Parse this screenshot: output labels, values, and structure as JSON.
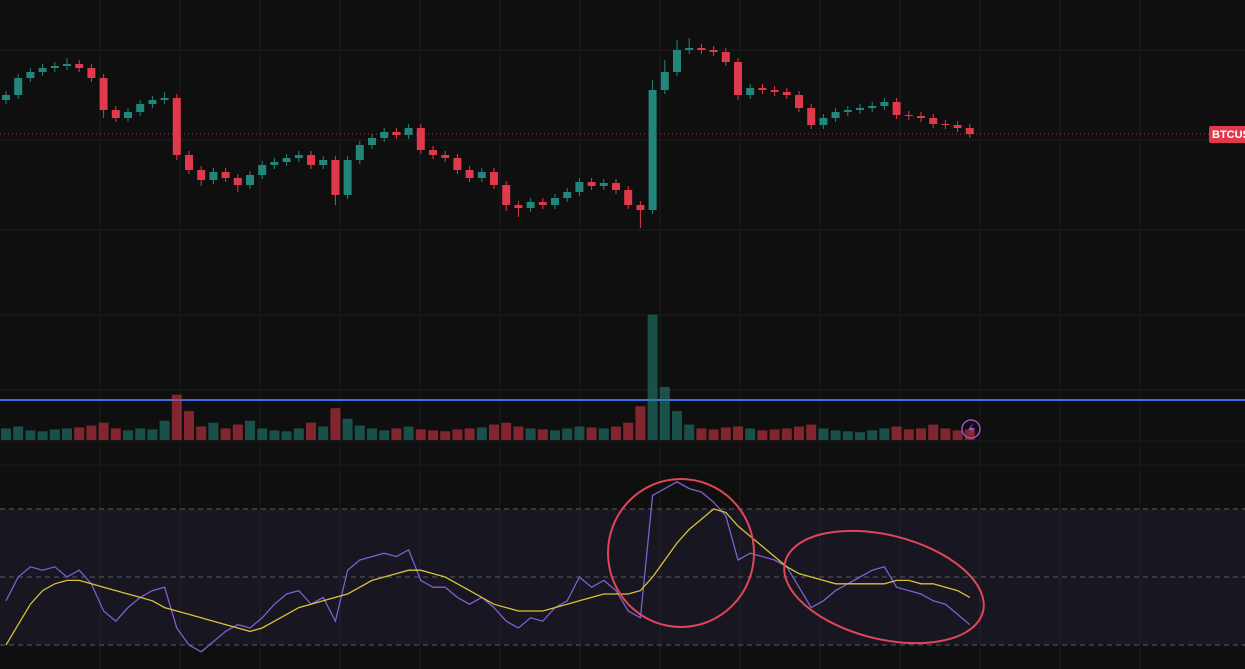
{
  "chart_data": [
    {
      "type": "candlestick",
      "symbol_label": "BTCUS",
      "up_color": "#22867a",
      "down_color": "#e0394b",
      "ylim": [
        0,
        250
      ],
      "y2lim": [
        0,
        140
      ],
      "open": [
        150,
        155,
        172,
        178,
        182,
        184,
        186,
        182,
        172,
        140,
        132,
        138,
        146,
        150,
        152,
        95,
        80,
        70,
        78,
        72,
        65,
        75,
        85,
        88,
        92,
        95,
        85,
        90,
        55,
        90,
        105,
        112,
        118,
        115,
        122,
        100,
        95,
        92,
        80,
        72,
        78,
        65,
        45,
        42,
        48,
        45,
        52,
        58,
        68,
        64,
        67,
        60,
        45,
        40,
        160,
        178,
        200,
        202,
        200,
        198,
        188,
        155,
        162,
        160,
        158,
        155,
        142,
        125,
        132,
        138,
        140,
        142,
        144,
        148,
        135,
        134,
        132,
        126,
        125,
        122
      ],
      "high": [
        159,
        176,
        182,
        186,
        188,
        192,
        190,
        186,
        176,
        144,
        142,
        150,
        154,
        158,
        156,
        99,
        84,
        82,
        82,
        76,
        79,
        89,
        92,
        96,
        99,
        99,
        94,
        94,
        94,
        109,
        116,
        122,
        122,
        126,
        126,
        104,
        99,
        96,
        84,
        82,
        82,
        69,
        49,
        52,
        52,
        56,
        62,
        72,
        72,
        71,
        71,
        64,
        49,
        170,
        190,
        210,
        212,
        206,
        204,
        202,
        192,
        166,
        166,
        164,
        162,
        159,
        146,
        136,
        142,
        144,
        146,
        148,
        152,
        152,
        139,
        138,
        136,
        130,
        129,
        126
      ],
      "low": [
        146,
        151,
        168,
        174,
        178,
        180,
        178,
        168,
        132,
        128,
        128,
        134,
        142,
        146,
        90,
        76,
        64,
        66,
        68,
        58,
        61,
        71,
        81,
        84,
        88,
        81,
        81,
        45,
        51,
        86,
        101,
        108,
        111,
        111,
        96,
        91,
        88,
        76,
        68,
        68,
        61,
        39,
        33,
        38,
        41,
        41,
        48,
        54,
        60,
        60,
        56,
        41,
        22,
        36,
        156,
        174,
        196,
        196,
        194,
        184,
        150,
        151,
        156,
        154,
        151,
        138,
        121,
        121,
        128,
        134,
        136,
        138,
        140,
        131,
        130,
        128,
        122,
        121,
        118,
        112
      ],
      "close": [
        155,
        172,
        178,
        182,
        184,
        186,
        182,
        172,
        140,
        132,
        138,
        146,
        150,
        152,
        95,
        80,
        70,
        78,
        72,
        65,
        75,
        85,
        88,
        92,
        95,
        85,
        90,
        55,
        90,
        105,
        112,
        118,
        115,
        122,
        100,
        95,
        92,
        80,
        72,
        78,
        65,
        45,
        42,
        48,
        45,
        52,
        58,
        68,
        64,
        67,
        60,
        45,
        40,
        160,
        178,
        200,
        202,
        200,
        198,
        188,
        155,
        162,
        160,
        158,
        155,
        142,
        125,
        132,
        138,
        140,
        142,
        144,
        148,
        135,
        134,
        132,
        126,
        125,
        122,
        116
      ],
      "series": [
        {
          "name": null,
          "axis": "y2",
          "values": [
            12,
            14,
            10,
            9,
            11,
            12,
            13,
            15,
            18,
            12,
            10,
            12,
            11,
            20,
            47,
            30,
            14,
            18,
            12,
            16,
            20,
            12,
            10,
            9,
            12,
            18,
            14,
            33,
            22,
            15,
            12,
            10,
            12,
            14,
            11,
            10,
            9,
            11,
            12,
            13,
            16,
            18,
            14,
            12,
            11,
            10,
            12,
            14,
            13,
            12,
            14,
            18,
            35,
            130,
            55,
            30,
            16,
            12,
            11,
            13,
            14,
            12,
            10,
            11,
            12,
            14,
            16,
            12,
            10,
            9,
            8,
            10,
            12,
            14,
            11,
            12,
            16,
            12,
            10,
            11
          ]
        }
      ]
    },
    {
      "type": "line",
      "ylim": [
        25,
        80
      ],
      "yticks": [
        30,
        50,
        70
      ],
      "grid": true,
      "series": [
        {
          "name": null,
          "color": "#7e5fd0",
          "values": [
            43,
            50,
            53,
            52,
            53,
            50,
            52,
            48,
            40,
            37,
            41,
            44,
            46,
            47,
            35,
            30,
            28,
            31,
            34,
            36,
            35,
            38,
            42,
            45,
            46,
            42,
            44,
            37,
            52,
            55,
            56,
            57,
            56,
            58,
            49,
            47,
            47,
            44,
            42,
            44,
            41,
            37,
            35,
            38,
            37,
            41,
            43,
            50,
            47,
            49,
            46,
            40,
            38,
            74,
            76,
            78,
            76,
            75,
            72,
            68,
            55,
            57,
            56,
            55,
            53,
            47,
            41,
            43,
            46,
            48,
            50,
            52,
            53,
            47,
            46,
            45,
            43,
            42,
            39,
            36
          ]
        },
        {
          "name": null,
          "color": "#d9c23a",
          "values": [
            30,
            36,
            42,
            46,
            48,
            49,
            49,
            48,
            47,
            46,
            45,
            44,
            43,
            41,
            40,
            39,
            38,
            37,
            36,
            35,
            34,
            35,
            37,
            39,
            41,
            42,
            43,
            44,
            45,
            47,
            49,
            50,
            51,
            52,
            52,
            51,
            50,
            48,
            46,
            44,
            42,
            41,
            40,
            40,
            40,
            41,
            42,
            43,
            44,
            45,
            45,
            45,
            46,
            50,
            55,
            60,
            64,
            67,
            70,
            69,
            65,
            62,
            59,
            56,
            53,
            51,
            50,
            49,
            48,
            48,
            48,
            48,
            48,
            49,
            49,
            48,
            48,
            47,
            46,
            44
          ]
        }
      ]
    }
  ]
}
